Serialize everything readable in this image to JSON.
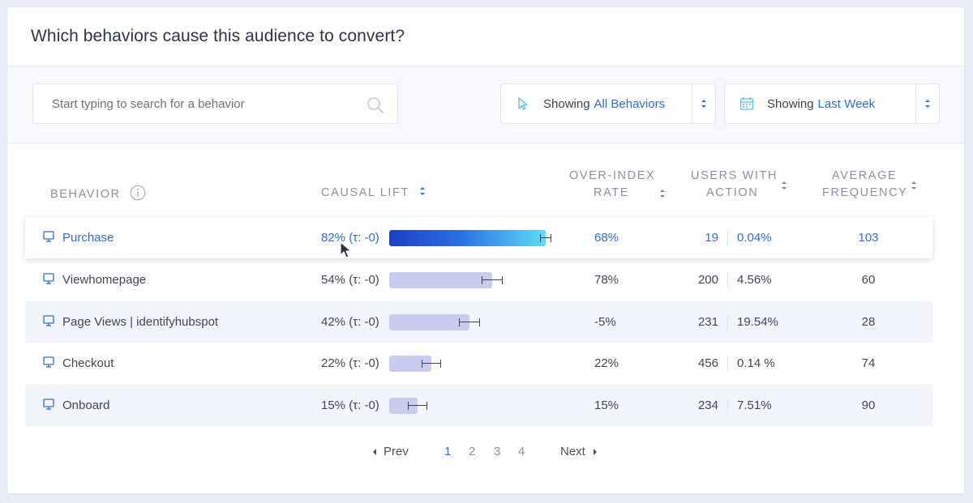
{
  "title": "Which behaviors cause this audience to convert?",
  "search": {
    "placeholder": "Start typing to search for a behavior"
  },
  "filters": [
    {
      "prefix": "Showing",
      "value": "All Behaviors",
      "icon": "cursor-icon"
    },
    {
      "prefix": "Showing",
      "value": "Last Week",
      "icon": "calendar-icon"
    }
  ],
  "columns": {
    "behavior": "BEHAVIOR",
    "causal_lift": "CAUSAL LIFT",
    "over_index_1": "OVER-INDEX",
    "over_index_2": "RATE",
    "users_1": "USERS WITH",
    "users_2": "ACTION",
    "freq_1": "AVERAGE",
    "freq_2": "FREQUENCY"
  },
  "rows": [
    {
      "name": "Purchase",
      "lift": "82% (τ: -0)",
      "lift_value": 82,
      "over_index": "68%",
      "users": "19",
      "users_pct": "0.04%",
      "freq": "103",
      "selected": true
    },
    {
      "name": "Viewhomepage",
      "lift": "54% (τ: -0)",
      "lift_value": 54,
      "over_index": "78%",
      "users": "200",
      "users_pct": "4.56%",
      "freq": "60"
    },
    {
      "name": "Page Views | identifyhubspot",
      "lift": "42% (τ: -0)",
      "lift_value": 42,
      "over_index": "-5%",
      "users": "231",
      "users_pct": "19.54%",
      "freq": "28"
    },
    {
      "name": "Checkout",
      "lift": "22% (τ: -0)",
      "lift_value": 22,
      "over_index": "22%",
      "users": "456",
      "users_pct": "0.14 %",
      "freq": "74"
    },
    {
      "name": "Onboard",
      "lift": "15% (τ: -0)",
      "lift_value": 15,
      "over_index": "15%",
      "users": "234",
      "users_pct": "7.51%",
      "freq": "90"
    }
  ],
  "pagination": {
    "prev": "Prev",
    "next": "Next",
    "pages": [
      "1",
      "2",
      "3",
      "4"
    ],
    "current": "1"
  },
  "colors": {
    "accent": "#2f6bdb",
    "bar": "#c8cdef"
  }
}
